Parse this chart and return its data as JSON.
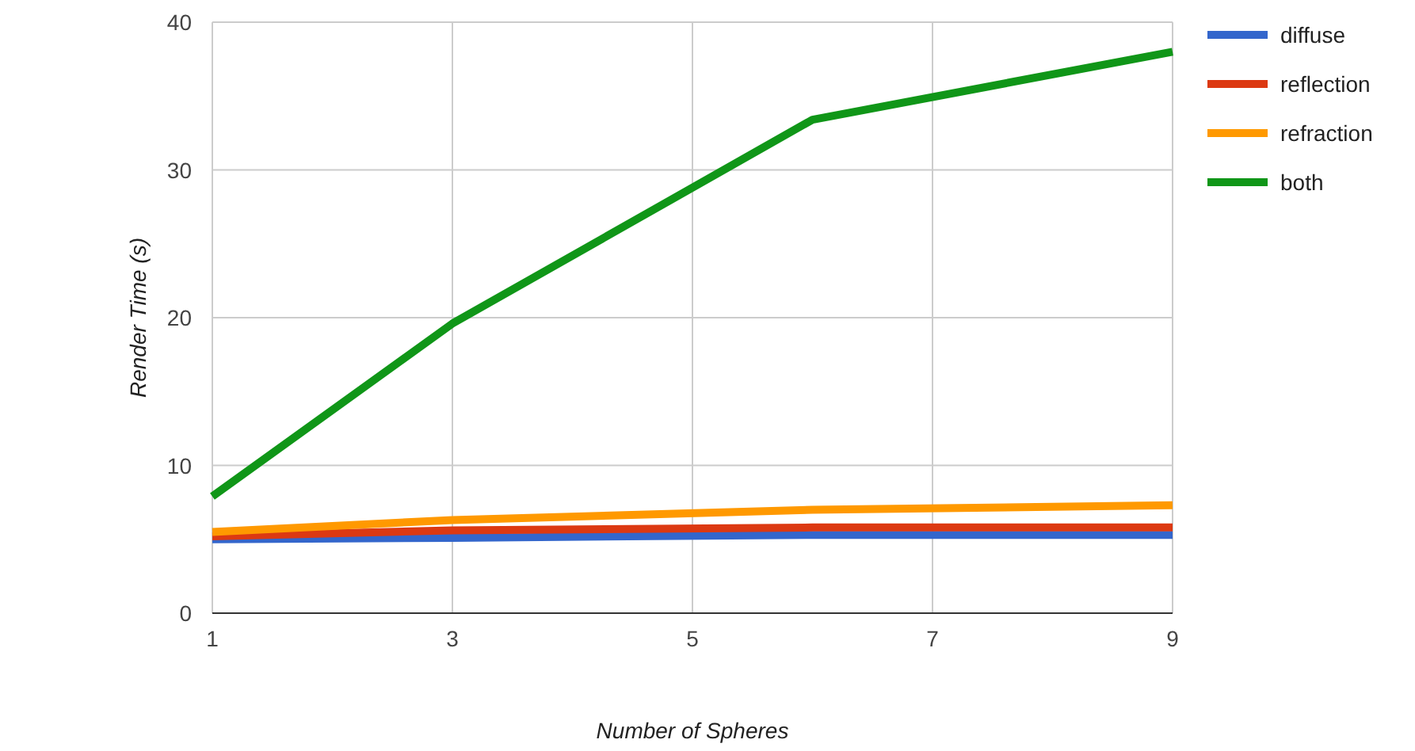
{
  "chart_data": {
    "type": "line",
    "xlabel": "Number of Spheres",
    "ylabel": "Render Time (s)",
    "x": [
      1,
      3,
      6,
      9
    ],
    "series": [
      {
        "name": "diffuse",
        "color": "#3366cc",
        "values": [
          5.0,
          5.1,
          5.3,
          5.3
        ]
      },
      {
        "name": "reflection",
        "color": "#dc3912",
        "values": [
          5.2,
          5.6,
          5.8,
          5.8
        ]
      },
      {
        "name": "refraction",
        "color": "#ff9900",
        "values": [
          5.5,
          6.3,
          7.0,
          7.3
        ]
      },
      {
        "name": "both",
        "color": "#109618",
        "values": [
          7.9,
          19.6,
          33.4,
          38.0
        ]
      }
    ],
    "xlim": [
      1,
      9
    ],
    "xticks": [
      1,
      3,
      5,
      7,
      9
    ],
    "ylim": [
      0,
      40
    ],
    "yticks": [
      0,
      10,
      20,
      30,
      40
    ],
    "grid": true,
    "legend": "right",
    "marker": "none",
    "line_style": "solid"
  }
}
